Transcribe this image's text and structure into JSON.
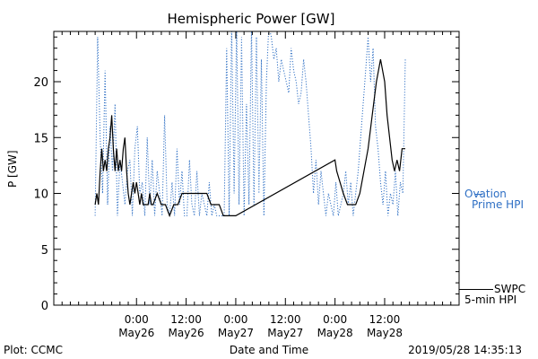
{
  "title": "Hemispheric Power [GW]",
  "ylabel": "P [GW]",
  "xlabel": "Date and Time",
  "plot_credit": "Plot: CCMC",
  "timestamp": "2019/05/28 14:35:13",
  "legend": {
    "ovation_line1": "Ovation",
    "ovation_line2": "Prime HPI",
    "swpc_line1": "SWPC",
    "swpc_line2": "5-min HPI"
  },
  "colors": {
    "ovation": "#2e6fc4",
    "swpc": "#000000",
    "axes": "#000000"
  },
  "chart_data": {
    "type": "line",
    "title": "Hemispheric Power [GW]",
    "xlabel": "Date and Time",
    "ylabel": "P [GW]",
    "x_unit": "hours since May26 0:00",
    "xlim": [
      -10,
      39
    ],
    "ylim": [
      0,
      24.5
    ],
    "yticks": [
      0,
      5,
      10,
      15,
      20
    ],
    "xticks": [
      {
        "x": 0,
        "line1": "0:00",
        "line2": "May26"
      },
      {
        "x": 6,
        "line1": "12:00",
        "line2": "May26"
      },
      {
        "x": 12,
        "line1": "0:00",
        "line2": "May27"
      },
      {
        "x": 18,
        "line1": "12:00",
        "line2": "May27"
      },
      {
        "x": 24,
        "line1": "0:00",
        "line2": "May28"
      },
      {
        "x": 30,
        "line1": "12:00",
        "line2": "May28"
      }
    ],
    "grid": false,
    "legend_position": "right",
    "series": [
      {
        "name": "SWPC 5-min HPI",
        "style": "solid",
        "color": "#000000",
        "x": [
          -5.0,
          -4.8,
          -4.6,
          -4.4,
          -4.2,
          -4.0,
          -3.8,
          -3.6,
          -3.4,
          -3.2,
          -3.0,
          -2.8,
          -2.6,
          -2.4,
          -2.2,
          -2.0,
          -1.8,
          -1.6,
          -1.4,
          -1.2,
          -1.0,
          -0.8,
          -0.6,
          -0.4,
          -0.2,
          0.0,
          0.2,
          0.4,
          0.6,
          0.8,
          1.0,
          1.2,
          1.4,
          1.6,
          1.8,
          2.0,
          2.5,
          3.0,
          3.5,
          4.0,
          4.5,
          5.0,
          5.5,
          6.0,
          6.5,
          7.0,
          7.5,
          8.0,
          8.5,
          9.0,
          9.5,
          10.0,
          10.5,
          11.0,
          11.5,
          11.8,
          12.0,
          24.0,
          24.2,
          24.6,
          25.0,
          25.5,
          26.0,
          26.5,
          27.0,
          27.5,
          28.0,
          28.5,
          29.0,
          29.5,
          30.0,
          30.3,
          30.6,
          30.9,
          31.2,
          31.5,
          31.8,
          32.1,
          32.5
        ],
        "y": [
          9,
          10,
          9,
          12,
          14,
          12,
          13,
          12,
          14,
          15,
          17,
          14,
          12,
          14,
          12,
          13,
          12,
          14,
          15,
          12,
          10,
          9,
          10,
          11,
          10,
          11,
          10,
          9,
          10,
          9,
          9,
          9,
          9,
          10,
          9,
          9,
          10,
          9,
          9,
          8,
          9,
          9,
          10,
          10,
          10,
          10,
          10,
          10,
          10,
          9,
          9,
          9,
          8,
          8,
          8,
          8,
          8,
          13,
          12,
          11,
          10,
          9,
          9,
          9,
          10,
          12,
          14,
          17,
          20,
          22,
          20,
          17,
          15,
          13,
          12,
          13,
          12,
          14,
          14
        ]
      },
      {
        "name": "Ovation Prime HPI",
        "style": "dotted",
        "color": "#2e6fc4",
        "x": [
          -5.0,
          -4.7,
          -4.4,
          -4.1,
          -3.8,
          -3.5,
          -3.2,
          -2.9,
          -2.6,
          -2.3,
          -2.0,
          -1.7,
          -1.4,
          -1.1,
          -0.8,
          -0.5,
          -0.2,
          0.1,
          0.4,
          0.7,
          1.0,
          1.3,
          1.6,
          1.9,
          2.2,
          2.5,
          2.8,
          3.1,
          3.4,
          3.7,
          4.0,
          4.3,
          4.6,
          4.9,
          5.2,
          5.5,
          5.8,
          6.1,
          6.4,
          6.7,
          7.0,
          7.3,
          7.6,
          7.9,
          8.2,
          8.5,
          8.8,
          9.1,
          9.4,
          9.7,
          10.0,
          10.3,
          10.6,
          10.9,
          11.2,
          11.5,
          11.8,
          12.1,
          12.4,
          12.7,
          13.0,
          13.3,
          13.6,
          13.9,
          14.2,
          14.5,
          14.8,
          15.1,
          15.4,
          15.7,
          16.0,
          16.3,
          16.6,
          16.9,
          17.2,
          17.5,
          17.8,
          18.1,
          18.4,
          18.7,
          19.0,
          19.3,
          19.6,
          19.9,
          20.2,
          20.5,
          20.8,
          21.1,
          21.4,
          21.7,
          22.0,
          22.3,
          22.6,
          22.9,
          23.2,
          23.5,
          23.8,
          24.1,
          24.4,
          24.7,
          25.0,
          25.3,
          25.6,
          25.9,
          26.2,
          26.5,
          26.8,
          27.1,
          27.4,
          27.7,
          28.0,
          28.3,
          28.6,
          28.9,
          29.2,
          29.5,
          29.8,
          30.1,
          30.4,
          30.7,
          31.0,
          31.3,
          31.6,
          31.9,
          32.2,
          32.5
        ],
        "y": [
          8,
          24,
          15,
          10,
          21,
          9,
          16,
          12,
          18,
          8,
          13,
          11,
          9,
          12,
          13,
          8,
          14,
          16,
          10,
          11,
          8,
          15,
          9,
          13,
          8,
          12,
          10,
          8,
          17,
          9,
          8,
          11,
          8,
          14,
          9,
          12,
          8,
          8,
          13,
          9,
          8,
          12,
          8,
          10,
          9,
          8,
          11,
          8,
          9,
          8,
          8,
          8,
          8,
          23,
          8,
          25,
          10,
          25,
          9,
          24,
          8,
          18,
          9,
          25,
          9,
          24,
          10,
          22,
          8,
          20,
          25,
          24,
          22,
          23,
          20,
          22,
          21,
          20,
          19,
          23,
          21,
          20,
          18,
          19,
          22,
          20,
          17,
          14,
          10,
          13,
          9,
          12,
          10,
          8,
          10,
          9,
          8,
          11,
          8,
          9,
          10,
          12,
          9,
          11,
          8,
          10,
          12,
          15,
          18,
          21,
          24,
          20,
          23,
          16,
          14,
          11,
          9,
          12,
          8,
          10,
          9,
          12,
          8,
          11,
          10,
          22
        ]
      }
    ]
  }
}
